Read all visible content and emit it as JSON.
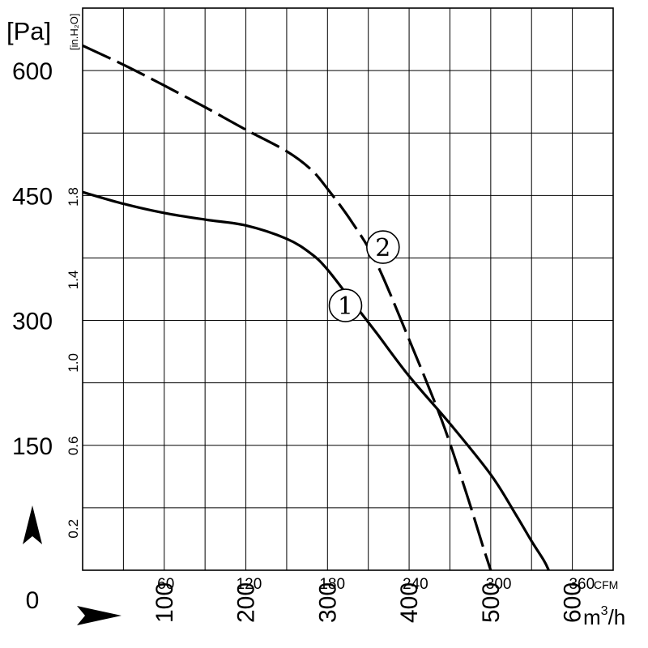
{
  "chart_data": {
    "type": "line",
    "title": "",
    "y_left": {
      "unit": "[Pa]",
      "ticks": [
        {
          "value": 0,
          "label": "0"
        },
        {
          "value": 150,
          "label": "150"
        },
        {
          "value": 300,
          "label": "300"
        },
        {
          "value": 450,
          "label": "450"
        },
        {
          "value": 600,
          "label": "600"
        }
      ],
      "range": [
        0,
        675
      ]
    },
    "y_right": {
      "unit": "[in.H₂O]",
      "ticks": [
        {
          "value": 0.2,
          "label": "0.2"
        },
        {
          "value": 0.6,
          "label": "0.6"
        },
        {
          "value": 1.0,
          "label": "1.0"
        },
        {
          "value": 1.4,
          "label": "1.4"
        },
        {
          "value": 1.8,
          "label": "1.8"
        }
      ]
    },
    "x_bottom": {
      "unit": "m³/h",
      "unit_base": "m",
      "unit_sup": "3",
      "unit_rest": "/h",
      "ticks": [
        {
          "value": 100,
          "label": "100"
        },
        {
          "value": 200,
          "label": "200"
        },
        {
          "value": 300,
          "label": "300"
        },
        {
          "value": 400,
          "label": "400"
        },
        {
          "value": 500,
          "label": "500"
        },
        {
          "value": 600,
          "label": "600"
        }
      ],
      "range": [
        0,
        650
      ]
    },
    "x_top": {
      "unit": "CFM",
      "ticks": [
        {
          "value": 60,
          "label": "60"
        },
        {
          "value": 120,
          "label": "120"
        },
        {
          "value": 180,
          "label": "180"
        },
        {
          "value": 240,
          "label": "240"
        },
        {
          "value": 300,
          "label": "300"
        },
        {
          "value": 360,
          "label": "360"
        }
      ]
    },
    "grid": true,
    "series": [
      {
        "name": "①",
        "dashed": false,
        "points": [
          [
            0,
            454
          ],
          [
            50,
            440
          ],
          [
            100,
            429
          ],
          [
            150,
            421
          ],
          [
            200,
            414
          ],
          [
            250,
            398
          ],
          [
            280,
            380
          ],
          [
            300,
            361
          ],
          [
            330,
            323
          ],
          [
            360,
            285
          ],
          [
            400,
            233
          ],
          [
            450,
            176
          ],
          [
            500,
            115
          ],
          [
            530,
            68
          ],
          [
            550,
            35
          ],
          [
            565,
            12
          ],
          [
            571,
            0
          ]
        ]
      },
      {
        "name": "②",
        "dashed": true,
        "points": [
          [
            0,
            630
          ],
          [
            50,
            607
          ],
          [
            100,
            582
          ],
          [
            150,
            556
          ],
          [
            200,
            529
          ],
          [
            250,
            503
          ],
          [
            280,
            481
          ],
          [
            300,
            458
          ],
          [
            330,
            418
          ],
          [
            360,
            369
          ],
          [
            400,
            277
          ],
          [
            440,
            180
          ],
          [
            470,
            93
          ],
          [
            490,
            30
          ],
          [
            500,
            0
          ]
        ]
      }
    ]
  }
}
